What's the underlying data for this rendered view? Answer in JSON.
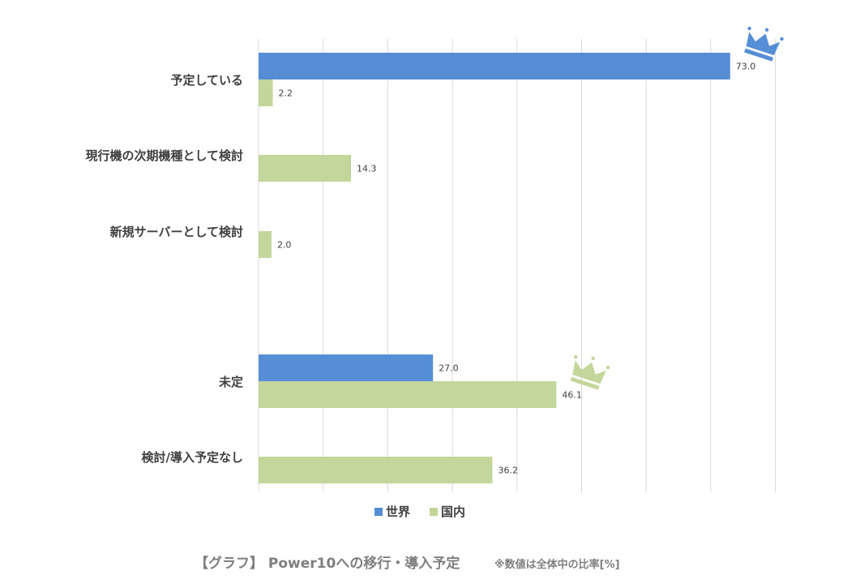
{
  "chart_data": {
    "type": "bar",
    "orientation": "horizontal",
    "categories": [
      "予定している",
      "現行機の次期機種として検討",
      "新規サーバーとして検討",
      "未定",
      "検討/導入予定なし"
    ],
    "series": [
      {
        "name": "世界",
        "color": "#558ed5",
        "values": [
          73.0,
          null,
          null,
          27.0,
          null
        ],
        "labels": [
          "73.0",
          "",
          "",
          "27.0",
          ""
        ]
      },
      {
        "name": "国内",
        "color": "#c3d69b",
        "values": [
          2.2,
          14.3,
          2.0,
          46.1,
          36.2
        ],
        "labels": [
          "2.2",
          "14.3",
          "2.0",
          "46.1",
          "36.2"
        ]
      }
    ],
    "xlim": [
      0,
      80
    ],
    "grid": true,
    "legend": "bottom",
    "highlights": [
      {
        "series": "世界",
        "category": "予定している",
        "icon": "crown-icon",
        "color": "#558ed5"
      },
      {
        "series": "国内",
        "category": "未定",
        "icon": "crown-icon",
        "color": "#c3d69b"
      }
    ]
  },
  "caption": {
    "title": "【グラフ】 Power10への移行・導入予定",
    "note": "※数値は全体中の比率[%]"
  }
}
